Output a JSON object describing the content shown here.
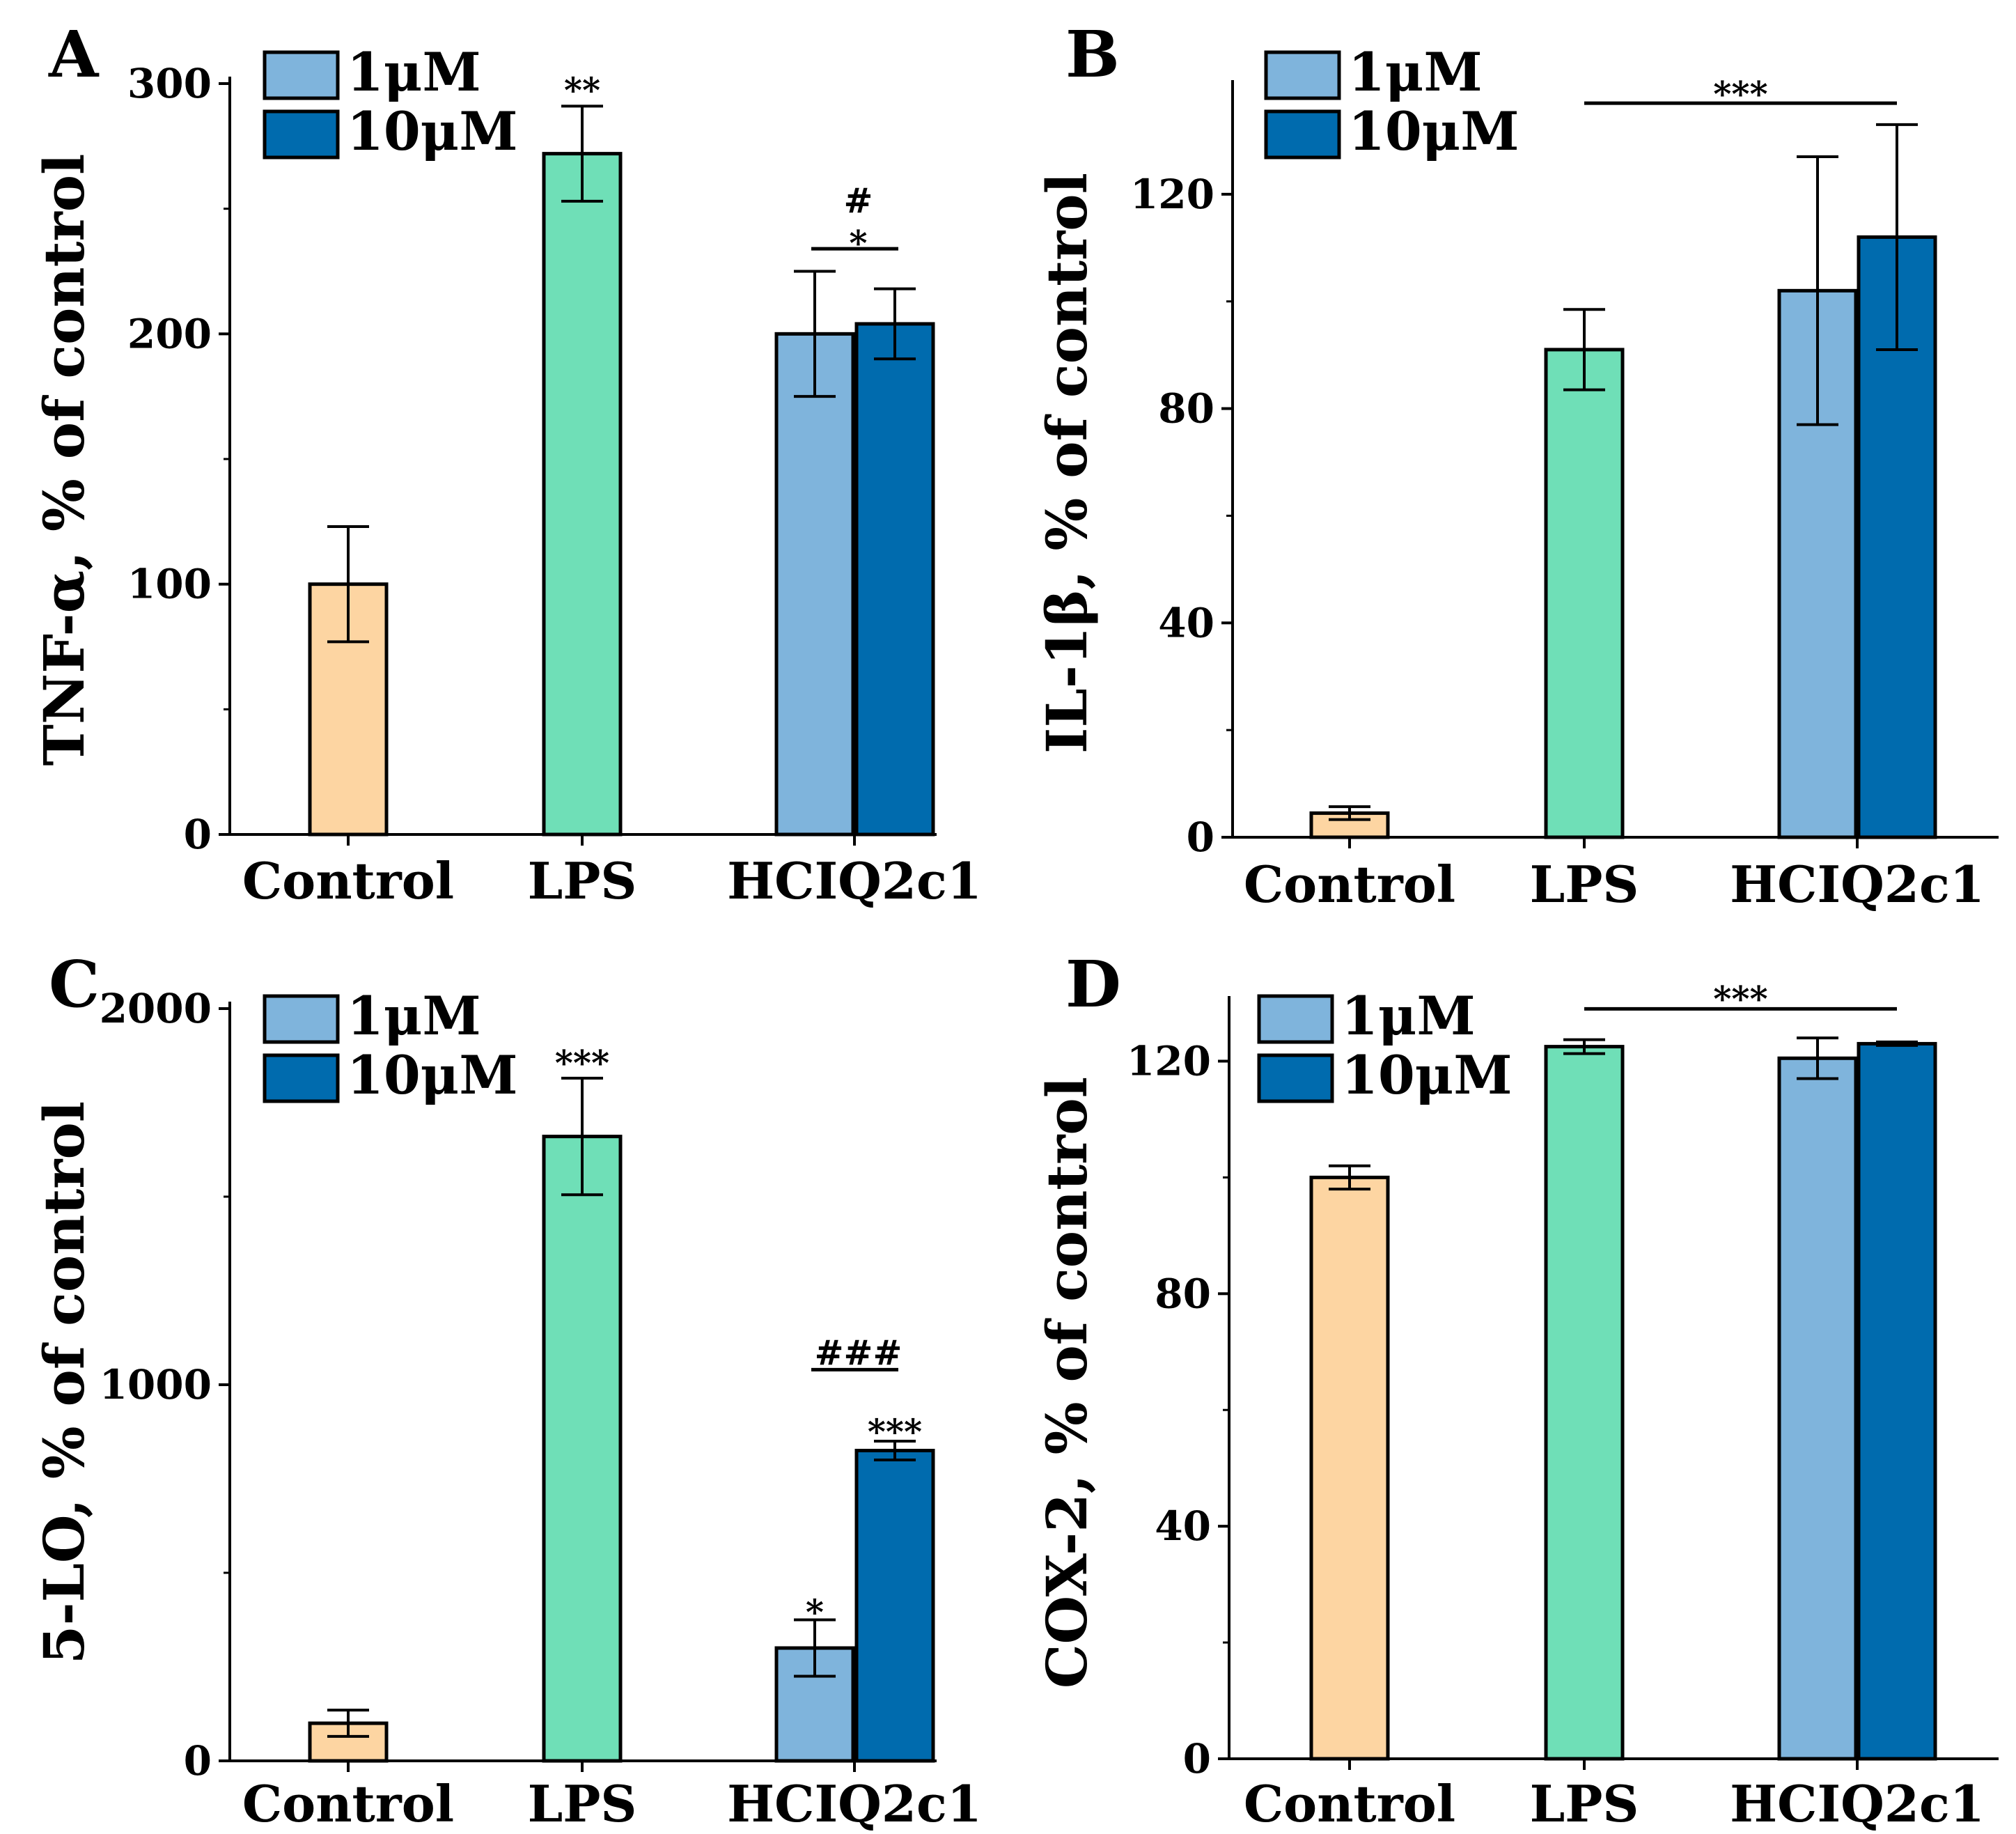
{
  "colors": {
    "control": "#FDD5A2",
    "lps": "#6FDFB7",
    "low_dose": "#7FB4DC",
    "high_dose": "#006BAE",
    "stroke": "#000000"
  },
  "chart_data": [
    {
      "panel": "A",
      "type": "bar",
      "ylabel": "TNF-α, % of control",
      "ylim": [
        0,
        300
      ],
      "yticks": [
        0,
        100,
        200,
        300
      ],
      "categories": [
        "Control",
        "LPS",
        "HCIQ2c1"
      ],
      "legend": [
        "1μM",
        "10μM"
      ],
      "bars": [
        {
          "category": "Control",
          "group": "control",
          "value": 100,
          "err": 23
        },
        {
          "category": "LPS",
          "group": "lps",
          "value": 272,
          "err": 19
        },
        {
          "category": "HCIQ2c1",
          "group": "low_dose",
          "value": 200,
          "err": 25
        },
        {
          "category": "HCIQ2c1",
          "group": "high_dose",
          "value": 204,
          "err": 14
        }
      ],
      "significance": [
        {
          "label": "**",
          "category": "LPS",
          "y": 298
        },
        {
          "label": "#",
          "category": "HCIQ2c1",
          "y": 254
        },
        {
          "label": "*",
          "category": "HCIQ2c1",
          "y": 237
        },
        {
          "bracket": true,
          "from": "HCIQ2c1-low",
          "to": "HCIQ2c1-high",
          "y": 234
        }
      ]
    },
    {
      "panel": "B",
      "type": "bar",
      "ylabel": "IL-1β, % of control",
      "ylim": [
        0,
        140
      ],
      "yticks": [
        0,
        40,
        80,
        120
      ],
      "categories": [
        "Control",
        "LPS",
        "HCIQ2c1"
      ],
      "legend": [
        "1μM",
        "10μM"
      ],
      "bars": [
        {
          "category": "Control",
          "group": "control",
          "value": 4.5,
          "err": 1.2
        },
        {
          "category": "LPS",
          "group": "lps",
          "value": 91,
          "err": 7.5
        },
        {
          "category": "HCIQ2c1",
          "group": "low_dose",
          "value": 102,
          "err": 25
        },
        {
          "category": "HCIQ2c1",
          "group": "high_dose",
          "value": 112,
          "err": 21
        }
      ],
      "significance": [
        {
          "label": "***",
          "category": "between",
          "y": 139
        },
        {
          "bracket": true,
          "from": "LPS",
          "to": "HCIQ2c1-high",
          "y": 137
        }
      ]
    },
    {
      "panel": "C",
      "type": "bar",
      "ylabel": "5-LO, % of control",
      "ylim": [
        0,
        2000
      ],
      "yticks": [
        0,
        1000,
        2000
      ],
      "categories": [
        "Control",
        "LPS",
        "HCIQ2c1"
      ],
      "legend": [
        "1μM",
        "10μM"
      ],
      "bars": [
        {
          "category": "Control",
          "group": "control",
          "value": 100,
          "err": 35
        },
        {
          "category": "LPS",
          "group": "lps",
          "value": 1660,
          "err": 155
        },
        {
          "category": "HCIQ2c1",
          "group": "low_dose",
          "value": 300,
          "err": 75
        },
        {
          "category": "HCIQ2c1",
          "group": "high_dose",
          "value": 825,
          "err": 25
        }
      ],
      "significance": [
        {
          "label": "***",
          "category": "LPS",
          "y": 1860
        },
        {
          "label": "###",
          "category": "HCIQ2c1",
          "y": 1090
        },
        {
          "label": "***",
          "category": "HCIQ2c1-high",
          "y": 880
        },
        {
          "label": "*",
          "category": "HCIQ2c1-low",
          "y": 400
        },
        {
          "bracket": true,
          "from": "HCIQ2c1-low",
          "to": "HCIQ2c1-high",
          "y": 1040
        }
      ]
    },
    {
      "panel": "D",
      "type": "bar",
      "ylabel": "COX-2, % of control",
      "ylim": [
        0,
        130
      ],
      "yticks": [
        0,
        40,
        80,
        120
      ],
      "categories": [
        "Control",
        "LPS",
        "HCIQ2c1"
      ],
      "legend": [
        "1μM",
        "10μM"
      ],
      "bars": [
        {
          "category": "Control",
          "group": "control",
          "value": 100,
          "err": 2
        },
        {
          "category": "LPS",
          "group": "lps",
          "value": 122.5,
          "err": 1.2
        },
        {
          "category": "HCIQ2c1",
          "group": "low_dose",
          "value": 120.5,
          "err": 3.5
        },
        {
          "category": "HCIQ2c1",
          "group": "high_dose",
          "value": 123,
          "err": 0.3
        }
      ],
      "significance": [
        {
          "label": "***",
          "category": "between",
          "y": 131
        },
        {
          "bracket": true,
          "from": "LPS",
          "to": "HCIQ2c1-high",
          "y": 129
        }
      ]
    }
  ]
}
